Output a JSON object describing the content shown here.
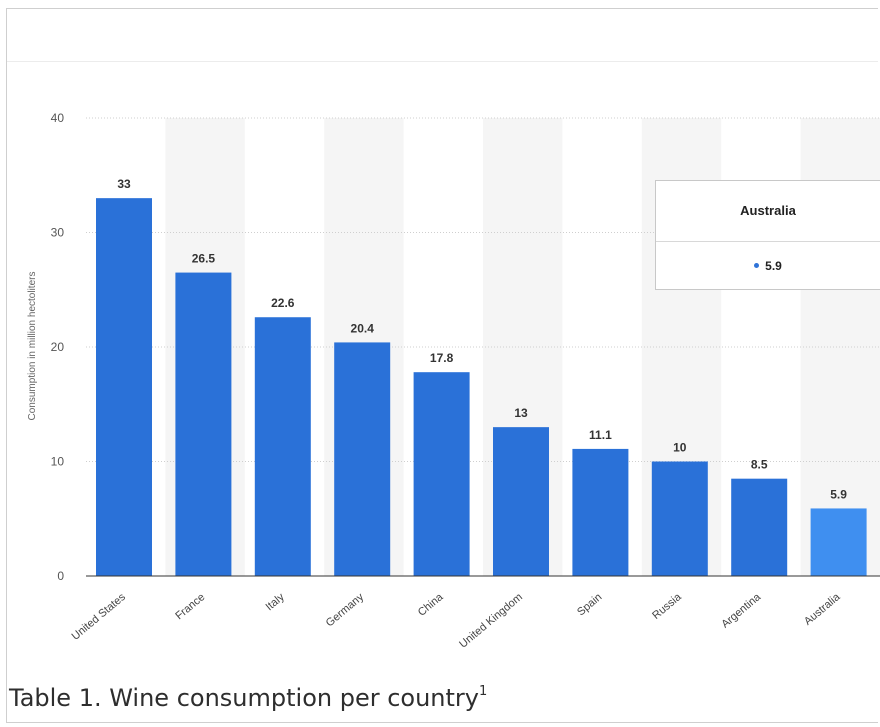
{
  "chart_data": {
    "type": "bar",
    "categories": [
      "United States",
      "France",
      "Italy",
      "Germany",
      "China",
      "United Kingdom",
      "Spain",
      "Russia",
      "Argentina",
      "Australia"
    ],
    "values": [
      33,
      26.5,
      22.6,
      20.4,
      17.8,
      13,
      11.1,
      10,
      8.5,
      5.9
    ],
    "value_labels": [
      "33",
      "26.5",
      "22.6",
      "20.4",
      "17.8",
      "13",
      "11.1",
      "10",
      "8.5",
      "5.9"
    ],
    "ylabel": "Consumption in million hectoliters",
    "ylim": [
      0,
      40
    ],
    "yticks": [
      "0",
      "10",
      "20",
      "30",
      "40"
    ],
    "grid": true,
    "highlighted_category": "Australia",
    "colors": {
      "bar": "#2a71d8",
      "highlight": "#3f8ff0",
      "band": "#f5f5f5"
    }
  },
  "tooltip": {
    "title": "Australia",
    "value": "5.9"
  },
  "caption": {
    "text": "Table 1. Wine consumption per country",
    "footnote": "1"
  }
}
